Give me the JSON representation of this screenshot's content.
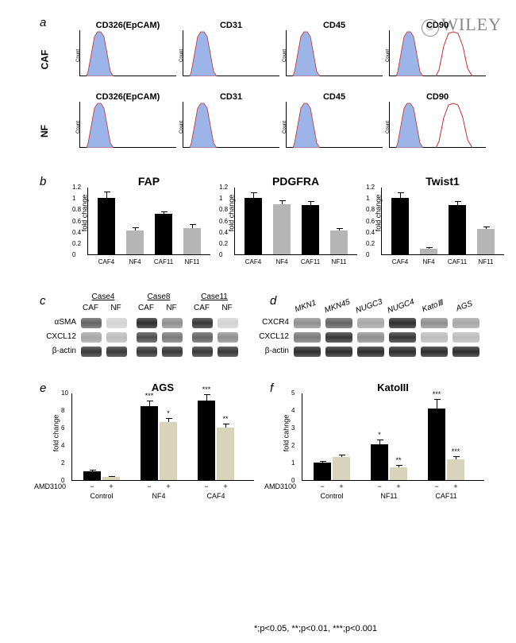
{
  "watermark": "WILEY",
  "panels": {
    "a": "a",
    "b": "b",
    "c": "c",
    "d": "d",
    "e": "e",
    "f": "f"
  },
  "panel_a": {
    "row_labels": [
      "CAF",
      "NF"
    ],
    "markers": [
      "CD326(EpCAM)",
      "CD31",
      "CD45",
      "CD90"
    ],
    "yaxis": "Count",
    "fill_color": "#9db4e8",
    "line_color": "#c03030"
  },
  "panel_b": {
    "charts": [
      "FAP",
      "PDGFRA",
      "Twist1"
    ],
    "yaxis": "fold change",
    "categories": [
      "CAF4",
      "NF4",
      "CAF11",
      "NF11"
    ],
    "yticks": [
      0,
      0.2,
      0.4,
      0.6,
      0.8,
      1,
      1.2
    ],
    "data": {
      "FAP": {
        "values": [
          1.0,
          0.43,
          0.72,
          0.47
        ],
        "errors": [
          0.12,
          0.05,
          0.04,
          0.06
        ]
      },
      "PDGFRA": {
        "values": [
          1.0,
          0.89,
          0.87,
          0.42
        ],
        "errors": [
          0.1,
          0.07,
          0.07,
          0.04
        ]
      },
      "Twist1": {
        "values": [
          1.0,
          0.1,
          0.87,
          0.45
        ],
        "errors": [
          0.1,
          0.03,
          0.07,
          0.05
        ]
      }
    },
    "colors": [
      "#000000",
      "#b5b5b5",
      "#000000",
      "#b5b5b5"
    ]
  },
  "panel_c": {
    "cases": [
      "Case4",
      "Case8",
      "Case11"
    ],
    "subcols": [
      "CAF",
      "NF"
    ],
    "rows": [
      "αSMA",
      "CXCL12",
      "β-actin"
    ]
  },
  "panel_d": {
    "cols": [
      "MKN1",
      "MKN45",
      "NUGC3",
      "NUGC4",
      "KatoⅢ",
      "AGS"
    ],
    "rows": [
      "CXCR4",
      "CXCL12",
      "β-actin"
    ]
  },
  "panel_e": {
    "title": "AGS",
    "yaxis": "fold change",
    "groups": [
      "Control",
      "NF4",
      "CAF4"
    ],
    "yticks": [
      0,
      2,
      4,
      6,
      8,
      10
    ],
    "bar_colors": [
      "#000000",
      "#d8d4bb"
    ],
    "data": {
      "Control": {
        "values": [
          1.0,
          0.4
        ],
        "errors": [
          0.15,
          0.1
        ],
        "sig": [
          "",
          ""
        ]
      },
      "NF4": {
        "values": [
          8.5,
          6.6
        ],
        "errors": [
          0.6,
          0.5
        ],
        "sig": [
          "***",
          "*"
        ]
      },
      "CAF4": {
        "values": [
          9.1,
          6.0
        ],
        "errors": [
          0.7,
          0.5
        ],
        "sig": [
          "***",
          "**"
        ]
      }
    },
    "amd_label": "AMD3100",
    "amd_signs": [
      "−",
      "+",
      "−",
      "+",
      "−",
      "+"
    ]
  },
  "panel_f": {
    "title": "KatoIII",
    "yaxis": "fold cahnge",
    "groups": [
      "Control",
      "NF11",
      "CAF11"
    ],
    "yticks": [
      0,
      1,
      2,
      3,
      4,
      5
    ],
    "bar_colors": [
      "#000000",
      "#d8d4bb"
    ],
    "data": {
      "Control": {
        "values": [
          1.0,
          1.3
        ],
        "errors": [
          0.1,
          0.15
        ],
        "sig": [
          "",
          ""
        ]
      },
      "NF11": {
        "values": [
          2.05,
          0.75
        ],
        "errors": [
          0.25,
          0.1
        ],
        "sig": [
          "*",
          "**"
        ]
      },
      "CAF11": {
        "values": [
          4.1,
          1.2
        ],
        "errors": [
          0.55,
          0.15
        ],
        "sig": [
          "***",
          "***"
        ]
      }
    },
    "amd_label": "AMD3100",
    "amd_signs": [
      "−",
      "+",
      "−",
      "+",
      "−",
      "+"
    ]
  },
  "footer": "*;p<0.05, **;p<0.01, ***;p<0.001"
}
